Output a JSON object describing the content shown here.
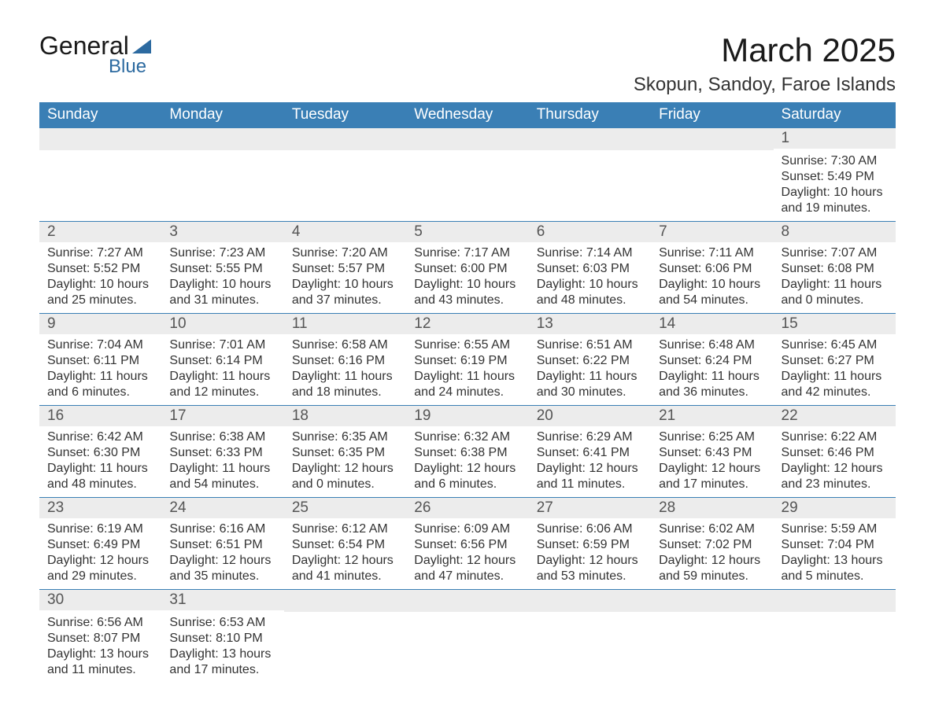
{
  "logo": {
    "text_top": "General",
    "text_bottom": "Blue"
  },
  "title": "March 2025",
  "location": "Skopun, Sandoy, Faroe Islands",
  "colors": {
    "header_bg": "#3a7fb5",
    "header_text": "#ffffff",
    "daynum_bg": "#ececec",
    "border": "#3a7fb5",
    "logo_accent": "#2c6aa0"
  },
  "day_labels": [
    "Sunday",
    "Monday",
    "Tuesday",
    "Wednesday",
    "Thursday",
    "Friday",
    "Saturday"
  ],
  "weeks": [
    [
      {
        "n": "",
        "sunrise": "",
        "sunset": "",
        "daylight": ""
      },
      {
        "n": "",
        "sunrise": "",
        "sunset": "",
        "daylight": ""
      },
      {
        "n": "",
        "sunrise": "",
        "sunset": "",
        "daylight": ""
      },
      {
        "n": "",
        "sunrise": "",
        "sunset": "",
        "daylight": ""
      },
      {
        "n": "",
        "sunrise": "",
        "sunset": "",
        "daylight": ""
      },
      {
        "n": "",
        "sunrise": "",
        "sunset": "",
        "daylight": ""
      },
      {
        "n": "1",
        "sunrise": "7:30 AM",
        "sunset": "5:49 PM",
        "daylight": "10 hours and 19 minutes."
      }
    ],
    [
      {
        "n": "2",
        "sunrise": "7:27 AM",
        "sunset": "5:52 PM",
        "daylight": "10 hours and 25 minutes."
      },
      {
        "n": "3",
        "sunrise": "7:23 AM",
        "sunset": "5:55 PM",
        "daylight": "10 hours and 31 minutes."
      },
      {
        "n": "4",
        "sunrise": "7:20 AM",
        "sunset": "5:57 PM",
        "daylight": "10 hours and 37 minutes."
      },
      {
        "n": "5",
        "sunrise": "7:17 AM",
        "sunset": "6:00 PM",
        "daylight": "10 hours and 43 minutes."
      },
      {
        "n": "6",
        "sunrise": "7:14 AM",
        "sunset": "6:03 PM",
        "daylight": "10 hours and 48 minutes."
      },
      {
        "n": "7",
        "sunrise": "7:11 AM",
        "sunset": "6:06 PM",
        "daylight": "10 hours and 54 minutes."
      },
      {
        "n": "8",
        "sunrise": "7:07 AM",
        "sunset": "6:08 PM",
        "daylight": "11 hours and 0 minutes."
      }
    ],
    [
      {
        "n": "9",
        "sunrise": "7:04 AM",
        "sunset": "6:11 PM",
        "daylight": "11 hours and 6 minutes."
      },
      {
        "n": "10",
        "sunrise": "7:01 AM",
        "sunset": "6:14 PM",
        "daylight": "11 hours and 12 minutes."
      },
      {
        "n": "11",
        "sunrise": "6:58 AM",
        "sunset": "6:16 PM",
        "daylight": "11 hours and 18 minutes."
      },
      {
        "n": "12",
        "sunrise": "6:55 AM",
        "sunset": "6:19 PM",
        "daylight": "11 hours and 24 minutes."
      },
      {
        "n": "13",
        "sunrise": "6:51 AM",
        "sunset": "6:22 PM",
        "daylight": "11 hours and 30 minutes."
      },
      {
        "n": "14",
        "sunrise": "6:48 AM",
        "sunset": "6:24 PM",
        "daylight": "11 hours and 36 minutes."
      },
      {
        "n": "15",
        "sunrise": "6:45 AM",
        "sunset": "6:27 PM",
        "daylight": "11 hours and 42 minutes."
      }
    ],
    [
      {
        "n": "16",
        "sunrise": "6:42 AM",
        "sunset": "6:30 PM",
        "daylight": "11 hours and 48 minutes."
      },
      {
        "n": "17",
        "sunrise": "6:38 AM",
        "sunset": "6:33 PM",
        "daylight": "11 hours and 54 minutes."
      },
      {
        "n": "18",
        "sunrise": "6:35 AM",
        "sunset": "6:35 PM",
        "daylight": "12 hours and 0 minutes."
      },
      {
        "n": "19",
        "sunrise": "6:32 AM",
        "sunset": "6:38 PM",
        "daylight": "12 hours and 6 minutes."
      },
      {
        "n": "20",
        "sunrise": "6:29 AM",
        "sunset": "6:41 PM",
        "daylight": "12 hours and 11 minutes."
      },
      {
        "n": "21",
        "sunrise": "6:25 AM",
        "sunset": "6:43 PM",
        "daylight": "12 hours and 17 minutes."
      },
      {
        "n": "22",
        "sunrise": "6:22 AM",
        "sunset": "6:46 PM",
        "daylight": "12 hours and 23 minutes."
      }
    ],
    [
      {
        "n": "23",
        "sunrise": "6:19 AM",
        "sunset": "6:49 PM",
        "daylight": "12 hours and 29 minutes."
      },
      {
        "n": "24",
        "sunrise": "6:16 AM",
        "sunset": "6:51 PM",
        "daylight": "12 hours and 35 minutes."
      },
      {
        "n": "25",
        "sunrise": "6:12 AM",
        "sunset": "6:54 PM",
        "daylight": "12 hours and 41 minutes."
      },
      {
        "n": "26",
        "sunrise": "6:09 AM",
        "sunset": "6:56 PM",
        "daylight": "12 hours and 47 minutes."
      },
      {
        "n": "27",
        "sunrise": "6:06 AM",
        "sunset": "6:59 PM",
        "daylight": "12 hours and 53 minutes."
      },
      {
        "n": "28",
        "sunrise": "6:02 AM",
        "sunset": "7:02 PM",
        "daylight": "12 hours and 59 minutes."
      },
      {
        "n": "29",
        "sunrise": "5:59 AM",
        "sunset": "7:04 PM",
        "daylight": "13 hours and 5 minutes."
      }
    ],
    [
      {
        "n": "30",
        "sunrise": "6:56 AM",
        "sunset": "8:07 PM",
        "daylight": "13 hours and 11 minutes."
      },
      {
        "n": "31",
        "sunrise": "6:53 AM",
        "sunset": "8:10 PM",
        "daylight": "13 hours and 17 minutes."
      },
      {
        "n": "",
        "sunrise": "",
        "sunset": "",
        "daylight": ""
      },
      {
        "n": "",
        "sunrise": "",
        "sunset": "",
        "daylight": ""
      },
      {
        "n": "",
        "sunrise": "",
        "sunset": "",
        "daylight": ""
      },
      {
        "n": "",
        "sunrise": "",
        "sunset": "",
        "daylight": ""
      },
      {
        "n": "",
        "sunrise": "",
        "sunset": "",
        "daylight": ""
      }
    ]
  ],
  "labels": {
    "sunrise": "Sunrise:",
    "sunset": "Sunset:",
    "daylight": "Daylight:"
  }
}
